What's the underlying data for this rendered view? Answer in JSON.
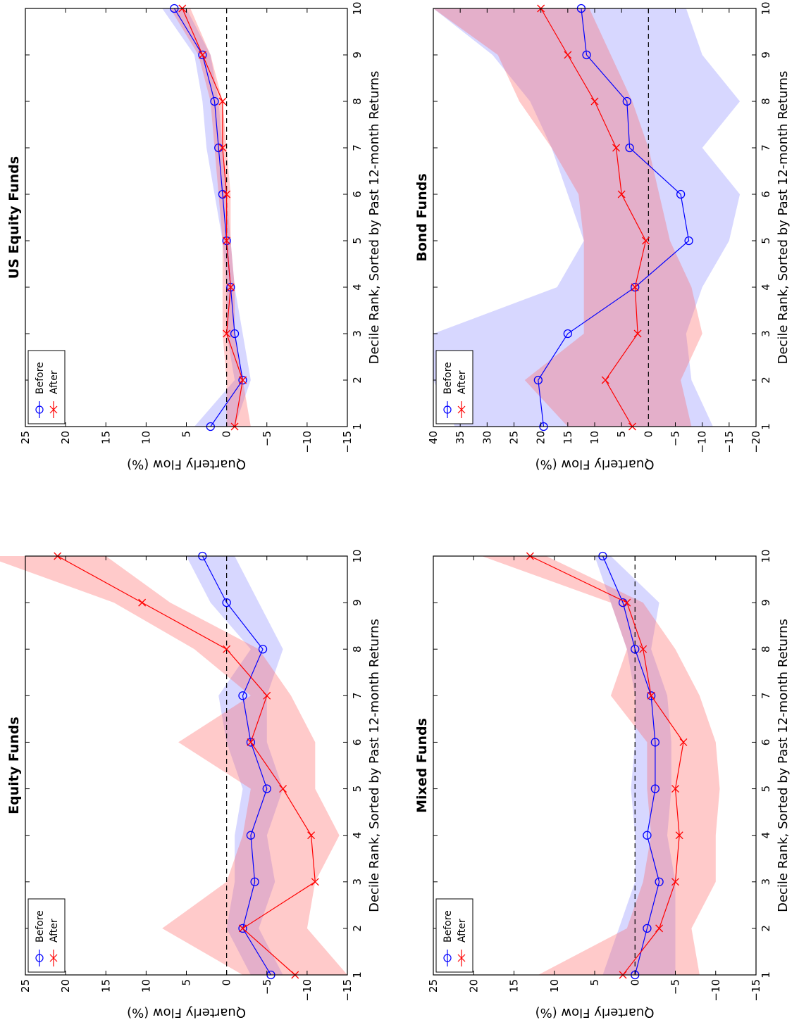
{
  "chart_data": [
    {
      "type": "line",
      "title": "Equity Funds",
      "xlabel": "Decile Rank, Sorted by Past 12-month Returns",
      "ylabel": "Quarterly Flow (%)",
      "xlim": [
        1,
        10
      ],
      "ylim": [
        -15,
        25
      ],
      "xticks": [
        1,
        2,
        3,
        4,
        5,
        6,
        7,
        8,
        9,
        10
      ],
      "yticks": [
        25,
        20,
        15,
        10,
        5,
        0,
        -5,
        -10,
        -15
      ],
      "x": [
        1,
        2,
        3,
        4,
        5,
        6,
        7,
        8,
        9,
        10
      ],
      "reference_line": 0,
      "legend": "top-left",
      "series": [
        {
          "name": "Before",
          "marker": "circle",
          "color": "#0000ff",
          "values": [
            -5.5,
            -2.0,
            -3.5,
            -3.0,
            -5.0,
            -3.0,
            -2.0,
            -4.5,
            0.0,
            3.0
          ],
          "band_upper": [
            -3,
            0,
            -1,
            -1,
            -2,
            0,
            1,
            -3,
            2,
            5
          ],
          "band_lower": [
            -7,
            -4,
            -6,
            -5,
            -7,
            -5,
            -5,
            -7,
            -4,
            -1
          ]
        },
        {
          "name": "After",
          "marker": "x",
          "color": "#ff0000",
          "values": [
            -8.5,
            -2.0,
            -11.0,
            -10.5,
            -7.0,
            -3.0,
            -5.0,
            0.0,
            10.5,
            21.0
          ],
          "band_upper": [
            -2,
            8,
            0,
            -2,
            -3,
            6,
            -3,
            4,
            14,
            30
          ],
          "band_lower": [
            -15,
            -10,
            -11,
            -14,
            -11,
            -11,
            -8,
            -4,
            7,
            15
          ]
        }
      ]
    },
    {
      "type": "line",
      "title": "US Equity Funds",
      "xlabel": "Decile Rank, Sorted by Past 12-month Returns",
      "ylabel": "Quarterly Flow (%)",
      "xlim": [
        1,
        10
      ],
      "ylim": [
        -15,
        25
      ],
      "xticks": [
        1,
        2,
        3,
        4,
        5,
        6,
        7,
        8,
        9,
        10
      ],
      "yticks": [
        25,
        20,
        15,
        10,
        5,
        0,
        -5,
        -10,
        -15
      ],
      "x": [
        1,
        2,
        3,
        4,
        5,
        6,
        7,
        8,
        9,
        10
      ],
      "reference_line": 0,
      "legend": "top-left",
      "series": [
        {
          "name": "Before",
          "marker": "circle",
          "color": "#0000ff",
          "values": [
            2.0,
            -2.0,
            -1.0,
            -0.5,
            0.0,
            0.5,
            1.0,
            1.5,
            3.0,
            6.5
          ],
          "band_upper": [
            4,
            -1,
            0,
            0,
            0.5,
            1.5,
            2.5,
            3,
            4,
            8
          ],
          "band_lower": [
            -1,
            -3,
            -2,
            -1,
            -0.5,
            0,
            0.5,
            1,
            2,
            5
          ]
        },
        {
          "name": "After",
          "marker": "x",
          "color": "#ff0000",
          "values": [
            -1.0,
            -2.0,
            0.0,
            -0.5,
            0.0,
            0.0,
            0.5,
            0.5,
            3.0,
            5.5
          ],
          "band_upper": [
            0,
            0,
            0.5,
            0.5,
            0.5,
            1,
            1.5,
            2,
            3.5,
            7
          ],
          "band_lower": [
            -3,
            -2,
            -1,
            -1,
            -0.5,
            -0.5,
            0,
            0.5,
            2,
            4.5
          ]
        }
      ]
    },
    {
      "type": "line",
      "title": "Mixed Funds",
      "xlabel": "Decile Rank, Sorted by Past 12-month Returns",
      "ylabel": "Quarterly Flow (%)",
      "xlim": [
        1,
        10
      ],
      "ylim": [
        -15,
        25
      ],
      "xticks": [
        1,
        2,
        3,
        4,
        5,
        6,
        7,
        8,
        9,
        10
      ],
      "yticks": [
        25,
        20,
        15,
        10,
        5,
        0,
        -5,
        -10,
        -15
      ],
      "x": [
        1,
        2,
        3,
        4,
        5,
        6,
        7,
        8,
        9,
        10
      ],
      "reference_line": 0,
      "legend": "top-left",
      "series": [
        {
          "name": "Before",
          "marker": "circle",
          "color": "#0000ff",
          "values": [
            0.0,
            -1.5,
            -3.0,
            -1.5,
            -2.5,
            -2.5,
            -2.0,
            0.0,
            1.5,
            4.0
          ],
          "band_upper": [
            4,
            2,
            0,
            0,
            0.5,
            0,
            0,
            1,
            3,
            5
          ],
          "band_lower": [
            -5,
            -5,
            -5,
            -4,
            -4.5,
            -4.5,
            -4,
            -2,
            -3,
            3
          ]
        },
        {
          "name": "After",
          "marker": "x",
          "color": "#ff0000",
          "values": [
            1.5,
            -3.0,
            -5.0,
            -5.5,
            -5.0,
            -6.0,
            -2.0,
            -1.0,
            1.0,
            13.0
          ],
          "band_upper": [
            12,
            1,
            -1,
            -2,
            -1.5,
            -1.5,
            3,
            1,
            3,
            19
          ],
          "band_lower": [
            -8,
            -7,
            -10,
            -10,
            -10.5,
            -10,
            -8,
            -5,
            -1,
            11
          ]
        }
      ]
    },
    {
      "type": "line",
      "title": "Bond Funds",
      "xlabel": "Decile Rank, Sorted by Past 12-month Returns",
      "ylabel": "Quarterly Flow (%)",
      "xlim": [
        1,
        10
      ],
      "ylim": [
        -20,
        40
      ],
      "xticks": [
        1,
        2,
        3,
        4,
        5,
        6,
        7,
        8,
        9,
        10
      ],
      "yticks": [
        40,
        35,
        30,
        25,
        20,
        15,
        10,
        5,
        0,
        -5,
        -10,
        -15,
        -20
      ],
      "x": [
        1,
        2,
        3,
        4,
        5,
        6,
        7,
        8,
        9,
        10
      ],
      "reference_line": 0,
      "legend": "top-left",
      "series": [
        {
          "name": "Before",
          "marker": "circle",
          "color": "#0000ff",
          "values": [
            19.5,
            20.5,
            15.0,
            2.5,
            -7.5,
            -6.0,
            3.5,
            4.0,
            11.5,
            12.5
          ],
          "band_upper": [
            36,
            40,
            40,
            17,
            12,
            15,
            18,
            22,
            29,
            40
          ],
          "band_lower": [
            -12,
            -8,
            -7,
            -10,
            -15,
            -17,
            -10,
            -17,
            -10,
            -7
          ]
        },
        {
          "name": "After",
          "marker": "x",
          "color": "#ff0000",
          "values": [
            3.0,
            8.0,
            2.0,
            2.5,
            0.5,
            5.0,
            6.0,
            10.0,
            15.0,
            20.0
          ],
          "band_upper": [
            15,
            23,
            12,
            12,
            12,
            13,
            18,
            24,
            28,
            40
          ],
          "band_lower": [
            -8,
            -6,
            -10,
            -8,
            -4,
            -2,
            0,
            3,
            7,
            11
          ]
        }
      ]
    }
  ]
}
